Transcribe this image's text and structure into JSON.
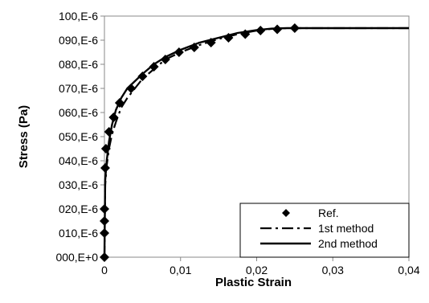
{
  "chart_data": {
    "type": "scatter",
    "xlabel": "Plastic Strain",
    "ylabel": "Stress (Pa)",
    "xlim": [
      0,
      0.04
    ],
    "ylim": [
      0,
      0.0001
    ],
    "x_ticks": [
      0,
      0.01,
      0.02,
      0.03,
      0.04
    ],
    "x_tick_labels": [
      "0",
      "0,01",
      "0,02",
      "0,03",
      "0,04"
    ],
    "y_ticks": [
      0,
      1e-05,
      2e-05,
      3e-05,
      4e-05,
      5e-05,
      6e-05,
      7e-05,
      8e-05,
      9e-05,
      0.0001
    ],
    "y_tick_labels": [
      "000,E+0",
      "010,E-6",
      "020,E-6",
      "030,E-6",
      "040,E-6",
      "050,E-6",
      "060,E-6",
      "070,E-6",
      "080,E-6",
      "090,E-6",
      "100,E-6"
    ],
    "grid": false,
    "legend_position": "bottom-right",
    "series": [
      {
        "name": "Ref.",
        "style": "markers",
        "marker": "diamond",
        "x": [
          0,
          0,
          0,
          0,
          0.0001,
          0.0002,
          0.0006,
          0.0012,
          0.002,
          0.0035,
          0.005,
          0.0065,
          0.008,
          0.0098,
          0.0118,
          0.014,
          0.0163,
          0.0185,
          0.0205,
          0.0227,
          0.025
        ],
        "y": [
          0,
          1e-05,
          1.5e-05,
          2e-05,
          3.7e-05,
          4.5e-05,
          5.2e-05,
          5.8e-05,
          6.4e-05,
          7e-05,
          7.5e-05,
          7.9e-05,
          8.2e-05,
          8.5e-05,
          8.7e-05,
          8.9e-05,
          9.1e-05,
          9.25e-05,
          9.4e-05,
          9.45e-05,
          9.5e-05
        ]
      },
      {
        "name": "1st method",
        "style": "dash-dot",
        "x": [
          0,
          0.0001,
          0.0003,
          0.0006,
          0.001,
          0.0015,
          0.0022,
          0.003,
          0.004,
          0.005,
          0.0065,
          0.008,
          0.01,
          0.0125,
          0.015,
          0.0175,
          0.02,
          0.022,
          0.024,
          0.025,
          0.03,
          0.035,
          0.04
        ],
        "y": [
          0,
          3e-05,
          3.8e-05,
          4.5e-05,
          5.1e-05,
          5.6e-05,
          6.2e-05,
          6.6e-05,
          7e-05,
          7.4e-05,
          7.8e-05,
          8.2e-05,
          8.5e-05,
          8.8e-05,
          9.05e-05,
          9.25e-05,
          9.4e-05,
          9.47e-05,
          9.5e-05,
          9.5e-05,
          9.5e-05,
          9.5e-05,
          9.5e-05
        ]
      },
      {
        "name": "2nd method",
        "style": "solid",
        "x": [
          0,
          0.0001,
          0.0003,
          0.0006,
          0.001,
          0.0015,
          0.0022,
          0.003,
          0.004,
          0.005,
          0.0065,
          0.008,
          0.01,
          0.0125,
          0.015,
          0.0175,
          0.02,
          0.022,
          0.024,
          0.025,
          0.03,
          0.035,
          0.04
        ],
        "y": [
          0,
          3.2e-05,
          4e-05,
          4.8e-05,
          5.5e-05,
          6.1e-05,
          6.6e-05,
          7e-05,
          7.3e-05,
          7.6e-05,
          8e-05,
          8.3e-05,
          8.6e-05,
          8.9e-05,
          9.1e-05,
          9.3e-05,
          9.42e-05,
          9.48e-05,
          9.5e-05,
          9.5e-05,
          9.5e-05,
          9.5e-05,
          9.5e-05
        ]
      }
    ]
  }
}
